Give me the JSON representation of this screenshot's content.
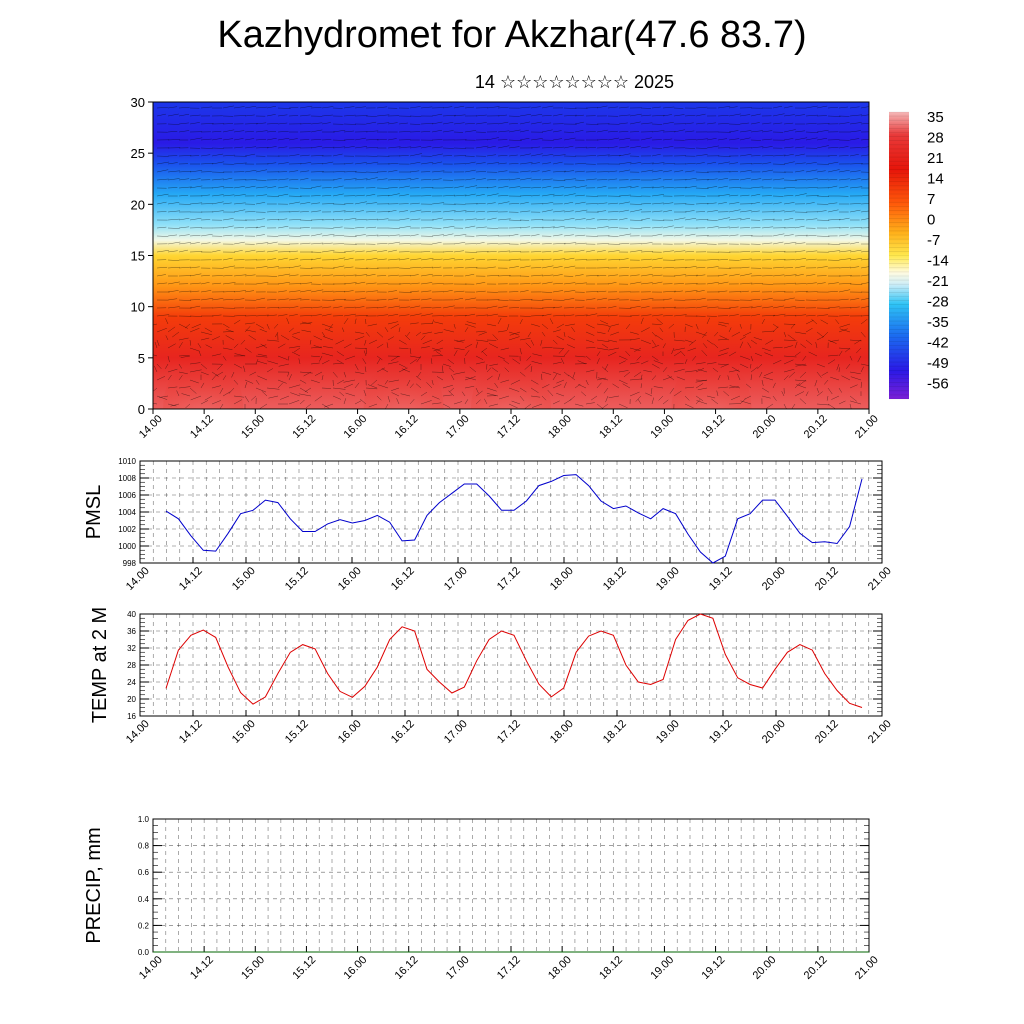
{
  "title": "Kazhydromet for Akzhar(47.6 83.7)",
  "subtitle": "14 ☆☆☆☆☆☆☆☆ 2025",
  "time_labels": [
    "14.00",
    "14.12",
    "15.00",
    "15.12",
    "16.00",
    "16.12",
    "17.00",
    "17.12",
    "18.00",
    "18.12",
    "19.00",
    "19.12",
    "20.00",
    "20.12",
    "21.00"
  ],
  "colorbar": {
    "labels": [
      "35",
      "28",
      "21",
      "14",
      "7",
      "0",
      "-7",
      "-14",
      "-21",
      "-28",
      "-35",
      "-42",
      "-49",
      "-56"
    ]
  },
  "chart_data": [
    {
      "type": "heatmap",
      "panel": "cross-section",
      "ylim": [
        0,
        30
      ],
      "yticks": [
        "0",
        "5",
        "10",
        "15",
        "20",
        "25",
        "30"
      ],
      "xticks": [
        "14.00",
        "14.12",
        "15.00",
        "15.12",
        "16.00",
        "16.12",
        "17.00",
        "17.12",
        "18.00",
        "18.12",
        "19.00",
        "19.12",
        "20.00",
        "20.12",
        "21.00"
      ],
      "color_range": [
        -56,
        35
      ],
      "profile": [
        {
          "y": 0,
          "v": 30
        },
        {
          "y": 5,
          "v": 24
        },
        {
          "y": 9,
          "v": 17
        },
        {
          "y": 12,
          "v": 6
        },
        {
          "y": 15,
          "v": -3
        },
        {
          "y": 16.5,
          "v": -11
        },
        {
          "y": 18,
          "v": -19
        },
        {
          "y": 21,
          "v": -32
        },
        {
          "y": 24,
          "v": -46
        },
        {
          "y": 26,
          "v": -56
        },
        {
          "y": 30,
          "v": -50
        }
      ]
    },
    {
      "type": "line",
      "ylabel": "PMSL",
      "ylim": [
        998,
        1010
      ],
      "yticks": [
        "998",
        "1000",
        "1002",
        "1004",
        "1006",
        "1008",
        "1010"
      ],
      "xticks": [
        "14.00",
        "14.12",
        "15.00",
        "15.12",
        "16.00",
        "16.12",
        "17.00",
        "17.12",
        "18.00",
        "18.12",
        "19.00",
        "19.12",
        "20.00",
        "20.12",
        "21.00"
      ],
      "color": "#0000cc",
      "x_step_hours": 3,
      "values": [
        1004.1,
        1003.2,
        1001.2,
        999.5,
        999.4,
        1001.5,
        1003.8,
        1004.2,
        1005.4,
        1005.1,
        1003.2,
        1001.7,
        1001.7,
        1002.6,
        1003.1,
        1002.7,
        1003.0,
        1003.6,
        1002.8,
        1000.6,
        1000.7,
        1003.6,
        1005.1,
        1006.2,
        1007.3,
        1007.3,
        1005.9,
        1004.2,
        1004.2,
        1005.3,
        1007.1,
        1007.6,
        1008.3,
        1008.4,
        1007.1,
        1005.3,
        1004.4,
        1004.7,
        1003.9,
        1003.2,
        1004.4,
        1003.8,
        1001.4,
        999.3,
        998.0,
        998.8,
        1003.2,
        1003.8,
        1005.4,
        1005.4,
        1003.5,
        1001.5,
        1000.4,
        1000.5,
        1000.3,
        1002.3,
        1007.9
      ]
    },
    {
      "type": "line",
      "ylabel": "TEMP at 2 M",
      "ylim": [
        16,
        40
      ],
      "yticks": [
        "16",
        "20",
        "24",
        "28",
        "32",
        "36",
        "40"
      ],
      "xticks": [
        "14.00",
        "14.12",
        "15.00",
        "15.12",
        "16.00",
        "16.12",
        "17.00",
        "17.12",
        "18.00",
        "18.12",
        "19.00",
        "19.12",
        "20.00",
        "20.12",
        "21.00"
      ],
      "color": "#dd0000",
      "x_step_hours": 3,
      "values": [
        22.5,
        31.5,
        35.0,
        36.2,
        34.5,
        27.5,
        21.5,
        18.8,
        20.5,
        26.0,
        31.0,
        32.8,
        31.8,
        26.0,
        21.8,
        20.4,
        23.0,
        27.5,
        34.0,
        37.0,
        36.0,
        27.0,
        24.0,
        21.4,
        22.8,
        29.0,
        34.0,
        36.0,
        35.0,
        29.0,
        23.5,
        20.5,
        22.6,
        31.0,
        34.8,
        36.0,
        35.0,
        28.0,
        24.0,
        23.4,
        24.6,
        34.0,
        38.5,
        40.0,
        39.0,
        30.5,
        25.0,
        23.4,
        22.6,
        27.0,
        31.0,
        32.8,
        31.5,
        26.0,
        22.0,
        19.0,
        18.0
      ]
    },
    {
      "type": "line",
      "ylabel": "PRECIP, mm",
      "ylim": [
        0.0,
        1.0
      ],
      "yticks": [
        "0.0",
        "0.2",
        "0.4",
        "0.6",
        "0.8",
        "1.0"
      ],
      "xticks": [
        "14.00",
        "14.12",
        "15.00",
        "15.12",
        "16.00",
        "16.12",
        "17.00",
        "17.12",
        "18.00",
        "18.12",
        "19.00",
        "19.12",
        "20.00",
        "20.12",
        "21.00"
      ],
      "color": "#006600",
      "values": [
        0,
        0
      ]
    }
  ]
}
